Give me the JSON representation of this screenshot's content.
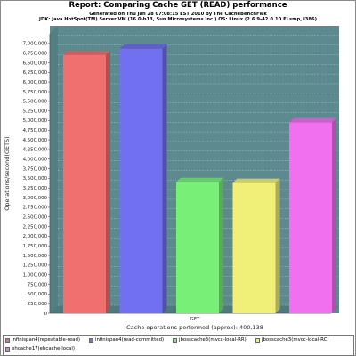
{
  "window": {
    "title": "Report: Comparing Cache GET (READ) performance",
    "subtitle_1": "Generated on Thu Jan 28 07:08:15 EST 2010 by The CacheBenchFwk",
    "subtitle_2": "JDK: Java HotSpot(TM) Server VM (16.0-b13, Sun Microsystems Inc.) OS: Linux (2.6.9-42.0.10.ELsmp, i386)"
  },
  "colors": {
    "plot_background": "#5d8a8e",
    "plot_wall": "#6f9ea2",
    "grid": "#a8c8ca"
  },
  "chart_data": {
    "type": "bar",
    "title": "Report: Comparing Cache GET (READ) performance",
    "xlabel": "Cache operations performed (approx): 400,138",
    "ylabel": "Operations/second(GETS)",
    "categories": [
      "GET"
    ],
    "ylim": [
      0,
      7250000
    ],
    "yticks": [
      0,
      250000,
      500000,
      750000,
      1000000,
      1250000,
      1500000,
      1750000,
      2000000,
      2250000,
      2500000,
      2750000,
      3000000,
      3250000,
      3500000,
      3750000,
      4000000,
      4250000,
      4500000,
      4750000,
      5000000,
      5250000,
      5500000,
      5750000,
      6000000,
      6250000,
      6500000,
      6750000,
      7000000
    ],
    "ytick_labels": [
      "0",
      "250,000",
      "500,000",
      "750,000",
      "1,000,000",
      "1,250,000",
      "1,500,000",
      "1,750,000",
      "2,000,000",
      "2,250,000",
      "2,500,000",
      "2,750,000",
      "3,000,000",
      "3,250,000",
      "3,500,000",
      "3,750,000",
      "4,000,000",
      "4,250,000",
      "4,500,000",
      "4,750,000",
      "5,000,000",
      "5,250,000",
      "5,500,000",
      "5,750,000",
      "6,000,000",
      "6,250,000",
      "6,500,000",
      "6,750,000",
      "7,000,000"
    ],
    "grid": true,
    "legend_position": "bottom",
    "series": [
      {
        "name": "infinispan4(repeatable-read)",
        "color": "#f07070",
        "values": [
          6700000
        ]
      },
      {
        "name": "infinispan4(read-committed)",
        "color": "#7070f0",
        "values": [
          6860000
        ]
      },
      {
        "name": "jbosscache3(mvcc-local-RR)",
        "color": "#78f078",
        "values": [
          3400000
        ]
      },
      {
        "name": "jbosscache3(mvcc-local-RC)",
        "color": "#f0f078",
        "values": [
          3380000
        ]
      },
      {
        "name": "ehcache17(ehcache-local)",
        "color": "#f070f0",
        "values": [
          4950000
        ]
      }
    ]
  }
}
